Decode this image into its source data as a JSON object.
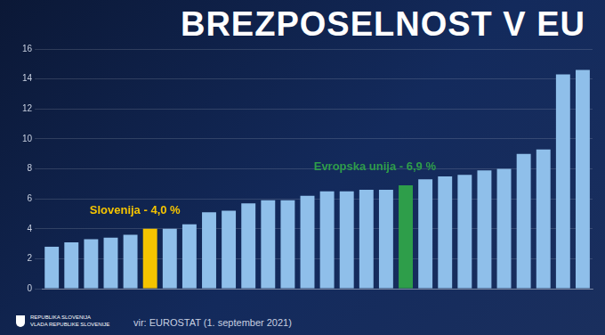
{
  "chart_data": {
    "type": "bar",
    "title": "BREZPOSELNOST V EU",
    "categories": [
      null,
      null,
      null,
      null,
      null,
      null,
      null,
      null,
      null,
      null,
      null,
      null,
      null,
      null,
      null,
      null,
      null,
      null,
      null,
      null,
      null,
      null,
      null,
      null,
      null,
      null,
      null,
      null
    ],
    "values": [
      2.8,
      3.1,
      3.3,
      3.4,
      3.6,
      4.0,
      4.0,
      4.3,
      5.1,
      5.2,
      5.7,
      5.9,
      5.9,
      6.2,
      6.5,
      6.5,
      6.6,
      6.6,
      6.9,
      7.3,
      7.5,
      7.6,
      7.9,
      8.0,
      9.0,
      9.3,
      14.3,
      14.6
    ],
    "colors": [
      "#8fbfea",
      "#8fbfea",
      "#8fbfea",
      "#8fbfea",
      "#8fbfea",
      "#f5c400",
      "#8fbfea",
      "#8fbfea",
      "#8fbfea",
      "#8fbfea",
      "#8fbfea",
      "#8fbfea",
      "#8fbfea",
      "#8fbfea",
      "#8fbfea",
      "#8fbfea",
      "#8fbfea",
      "#8fbfea",
      "#2e9e4a",
      "#8fbfea",
      "#8fbfea",
      "#8fbfea",
      "#8fbfea",
      "#8fbfea",
      "#8fbfea",
      "#8fbfea",
      "#8fbfea",
      "#8fbfea"
    ],
    "ylim": [
      0,
      16
    ],
    "yticks": [
      0,
      2,
      4,
      6,
      8,
      10,
      12,
      14,
      16
    ],
    "grid": true,
    "tick_labels": "y",
    "annotations": [
      {
        "text": "Slovenija - 4,0 %",
        "index": 5,
        "color": "#f5c400"
      },
      {
        "text": "Evropska unija - 6,9 %",
        "index": 18,
        "color": "#2e9e4a"
      }
    ],
    "source": "vir: EUROSTAT (1. september 2021)",
    "footer": [
      "REPUBLIKA SLOVENIJA",
      "VLADA REPUBLIKE SLOVENIJE"
    ]
  }
}
